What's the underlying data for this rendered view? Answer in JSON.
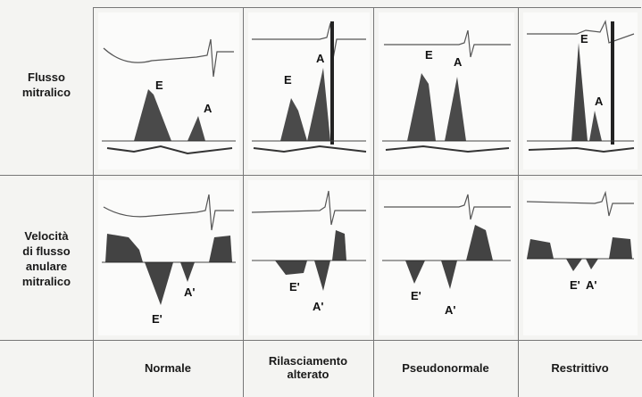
{
  "rows": [
    {
      "label_line1": "Flusso",
      "label_line2": "mitralico"
    },
    {
      "label_line1": "Velocità",
      "label_line2": "di flusso",
      "label_line3": "anulare",
      "label_line4": "mitralico"
    }
  ],
  "columns": [
    {
      "label_line1": "Normale",
      "label_line2": ""
    },
    {
      "label_line1": "Rilasciamento",
      "label_line2": "alterato"
    },
    {
      "label_line1": "Pseudonormale",
      "label_line2": ""
    },
    {
      "label_line1": "Restrittivo",
      "label_line2": ""
    }
  ],
  "wave_labels": {
    "e": "E",
    "a": "A",
    "e_prime": "E'",
    "a_prime": "A'"
  },
  "colors": {
    "trace": "#1c1c1c",
    "grid": "#777777",
    "background": "#f4f4f2"
  }
}
